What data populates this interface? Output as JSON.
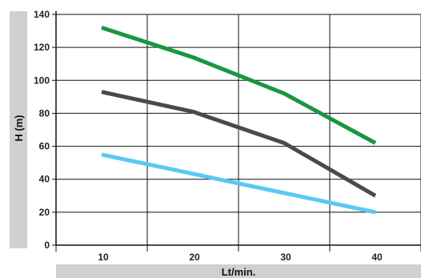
{
  "chart_data": {
    "type": "line",
    "title": "",
    "xlabel": "Lt/min.",
    "ylabel": "H (m)",
    "x_ticks": [
      "10",
      "20",
      "30",
      "40"
    ],
    "y_ticks": [
      "0",
      "20",
      "40",
      "60",
      "80",
      "100",
      "120",
      "140"
    ],
    "xlim": [
      5,
      45
    ],
    "ylim": [
      0,
      140
    ],
    "grid": true,
    "legend": "none",
    "series": [
      {
        "color": "#1a9641",
        "x": [
          10,
          20,
          25,
          30,
          40
        ],
        "y": [
          132,
          114,
          103,
          92,
          62
        ]
      },
      {
        "color": "#4a4a4a",
        "x": [
          10,
          20,
          30,
          40
        ],
        "y": [
          93,
          81,
          62,
          30
        ]
      },
      {
        "color": "#5bc8f0",
        "x": [
          10,
          40
        ],
        "y": [
          55,
          20
        ]
      }
    ],
    "colors": {
      "band": "#d0d0d0",
      "grid": "#111111",
      "axis": "#111111"
    }
  }
}
